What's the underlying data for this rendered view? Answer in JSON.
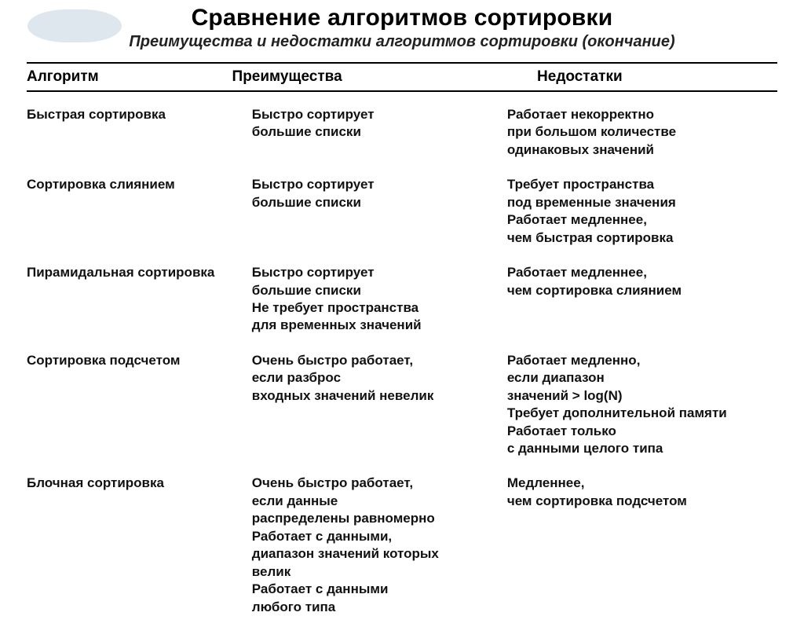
{
  "title": "Сравнение алгоритмов сортировки",
  "subtitle": "Преимущества и недостатки алгоритмов сортировки (окончание)",
  "columns": [
    "Алгоритм",
    "Преимущества",
    "Недостатки"
  ],
  "rows": [
    {
      "algo": "Быстрая сортировка",
      "adv": "Быстро сортирует\nбольшие списки",
      "dis": "Работает некорректно\nпри большом количестве\nодинаковых значений"
    },
    {
      "algo": "Сортировка слиянием",
      "adv": "Быстро сортирует\nбольшие списки",
      "dis": "Требует пространства\nпод временные значения\nРаботает медленнее,\nчем быстрая сортировка"
    },
    {
      "algo": "Пирамидальная сортировка",
      "adv": "Быстро сортирует\nбольшие списки\nНе требует пространства\nдля временных значений",
      "dis": "Работает медленнее,\nчем сортировка слиянием"
    },
    {
      "algo": "Сортировка подсчетом",
      "adv": "Очень быстро работает,\nесли разброс\nвходных значений невелик",
      "dis": "Работает медленно,\nесли диапазон\nзначений > log(N)\nТребует дополнительной памяти\nРаботает только\nс данными целого типа"
    },
    {
      "algo": "Блочная сортировка",
      "adv": "Очень быстро работает,\nесли данные\nраспределены равномерно\nРаботает с данными,\nдиапазон значений которых\nвелик\nРаботает с данными\nлюбого типа",
      "dis": "Медленнее,\nчем сортировка подсчетом"
    }
  ]
}
